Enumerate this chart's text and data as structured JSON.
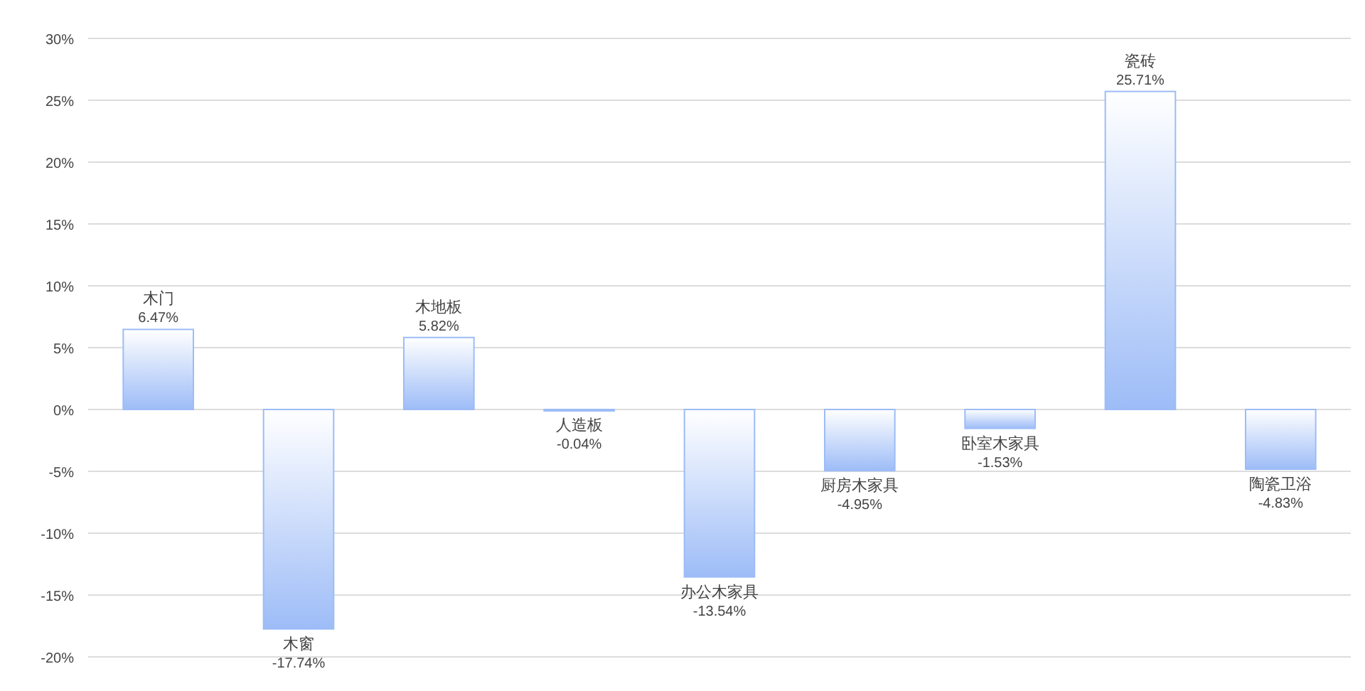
{
  "chart_data": {
    "type": "bar",
    "categories": [
      "木门",
      "木窗",
      "木地板",
      "人造板",
      "办公木家具",
      "厨房木家具",
      "卧室木家具",
      "瓷砖",
      "陶瓷卫浴"
    ],
    "values": [
      6.47,
      -17.74,
      5.82,
      -0.04,
      -13.54,
      -4.95,
      -1.53,
      25.71,
      -4.83
    ],
    "value_labels": [
      "6.47%",
      "-17.74%",
      "5.82%",
      "-0.04%",
      "-13.54%",
      "-4.95%",
      "-1.53%",
      "25.71%",
      "-4.83%"
    ],
    "color": "#9dbcf7",
    "ylim": [
      -20,
      30
    ],
    "yticks": [
      {
        "value": -20,
        "label": "-20%"
      },
      {
        "value": -15,
        "label": "-15%"
      },
      {
        "value": -10,
        "label": "-10%"
      },
      {
        "value": -5,
        "label": "-5%"
      },
      {
        "value": 0,
        "label": "0%"
      },
      {
        "value": 5,
        "label": "5%"
      },
      {
        "value": 10,
        "label": "10%"
      },
      {
        "value": 15,
        "label": "15%"
      },
      {
        "value": 20,
        "label": "20%"
      },
      {
        "value": 25,
        "label": "25%"
      },
      {
        "value": 30,
        "label": "30%"
      }
    ],
    "grid": "y"
  }
}
